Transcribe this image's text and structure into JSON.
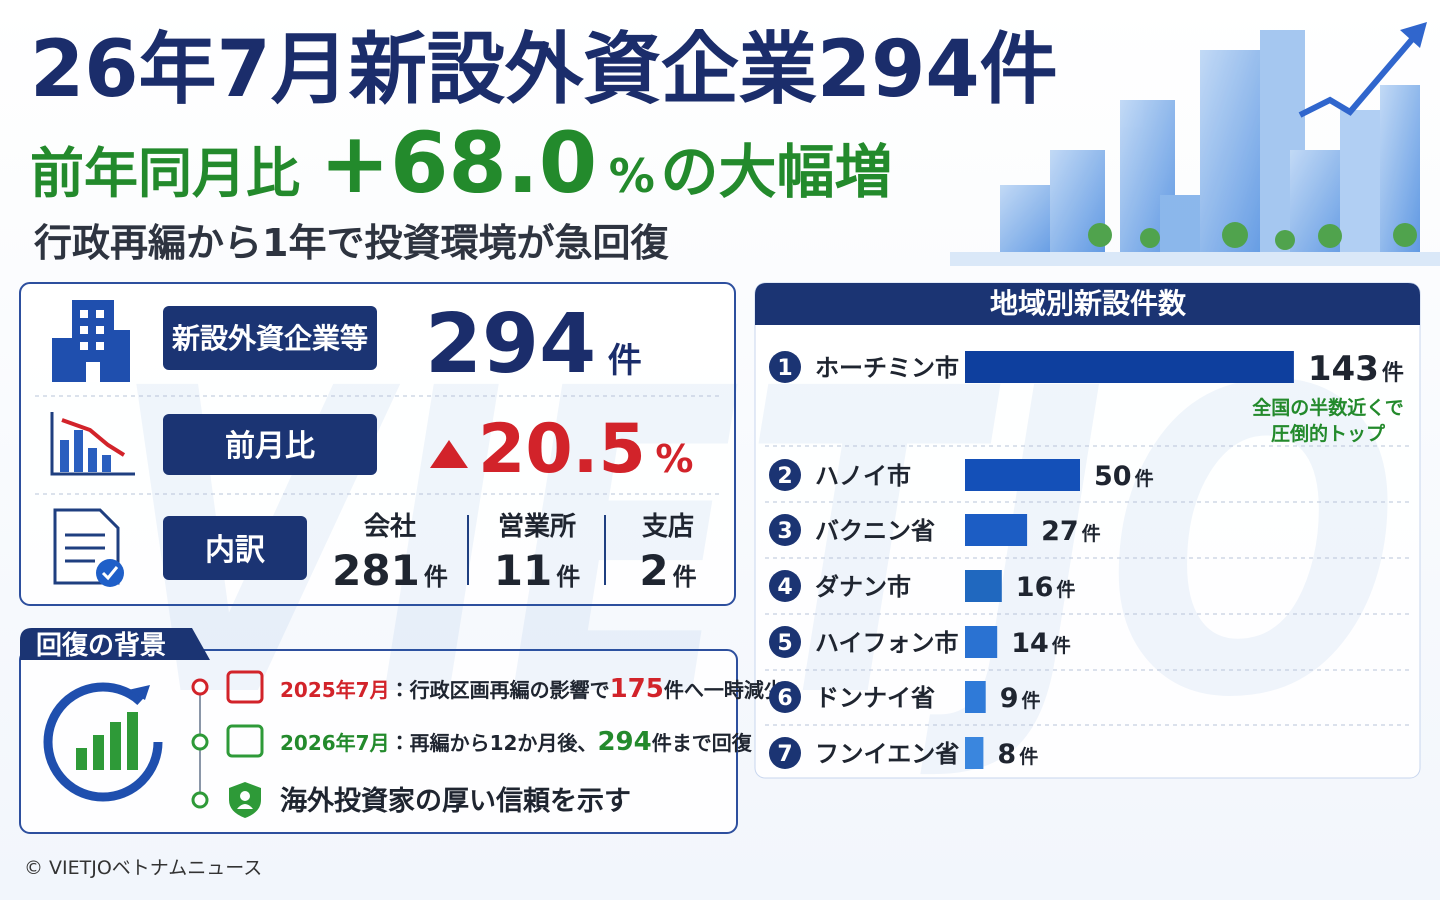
{
  "header": {
    "title": "26年7月新設外資企業294件",
    "subtitle_lead": "前年同月比",
    "subtitle_value": "+68.0",
    "subtitle_unit": "%",
    "subtitle_tail": "の大幅増",
    "tagline": "行政再編から1年で投資環境が急回復"
  },
  "watermark": "VIETJO",
  "stats": {
    "new_companies": {
      "label": "新設外資企業等",
      "value": "294",
      "unit": "件"
    },
    "month_on_month": {
      "label": "前月比",
      "value": "20.5",
      "unit": "%"
    },
    "breakdown": {
      "label": "内訳",
      "items": [
        {
          "name": "会社",
          "value": "281",
          "unit": "件"
        },
        {
          "name": "営業所",
          "value": "11",
          "unit": "件"
        },
        {
          "name": "支店",
          "value": "2",
          "unit": "件"
        }
      ]
    }
  },
  "background": {
    "title": "回復の背景",
    "items": [
      {
        "date": "2025年7月",
        "text": "：行政区画再編の影響で",
        "number": "175",
        "tail": "件へ一時減少"
      },
      {
        "date": "2026年7月",
        "text": "：再編から12か月後、",
        "number": "294",
        "tail": "件まで回復"
      }
    ],
    "conclusion": "海外投資家の厚い信頼を示す"
  },
  "chart_data": {
    "type": "bar",
    "orientation": "horizontal",
    "title": "地域別新設件数",
    "ranks": [
      "1",
      "2",
      "3",
      "4",
      "5",
      "6",
      "7"
    ],
    "categories": [
      "ホーチミン市",
      "ハノイ市",
      "バクニン省",
      "ダナン市",
      "ハイフォン市",
      "ドンナイ省",
      "フンイエン省"
    ],
    "values": [
      143,
      50,
      27,
      16,
      14,
      9,
      8
    ],
    "unit": "件",
    "colors": [
      "#0e3f9e",
      "#1450b8",
      "#1c5dc4",
      "#2068bf",
      "#2a72d2",
      "#2f7ad8",
      "#3a86de"
    ],
    "annotation": [
      "全国の半数近くで",
      "圧倒的トップ"
    ]
  },
  "footer": "© VIETJOベトナムニュース"
}
